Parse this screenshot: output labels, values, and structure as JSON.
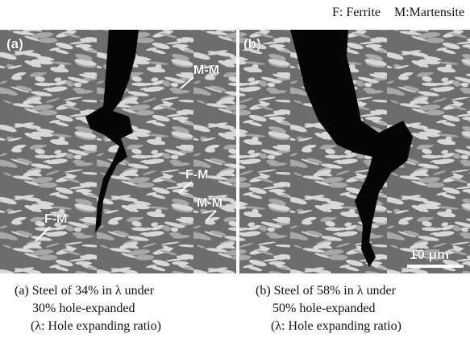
{
  "header": {
    "legend_f": "F: Ferrite",
    "legend_m": "M:Martensite"
  },
  "panels": [
    {
      "label": "(a)",
      "annotations": [
        "M-M",
        "F-M",
        "M-M",
        "F-M"
      ],
      "caption": [
        "(a) Steel of 34% in λ under",
        "30% hole-expanded",
        "(λ: Hole expanding ratio)"
      ]
    },
    {
      "label": "(b)",
      "scale_bar": "10 μm",
      "caption": [
        "(b) Steel of 58% in λ  under",
        "50% hole-expanded",
        "(λ: Hole expanding ratio)"
      ]
    }
  ]
}
